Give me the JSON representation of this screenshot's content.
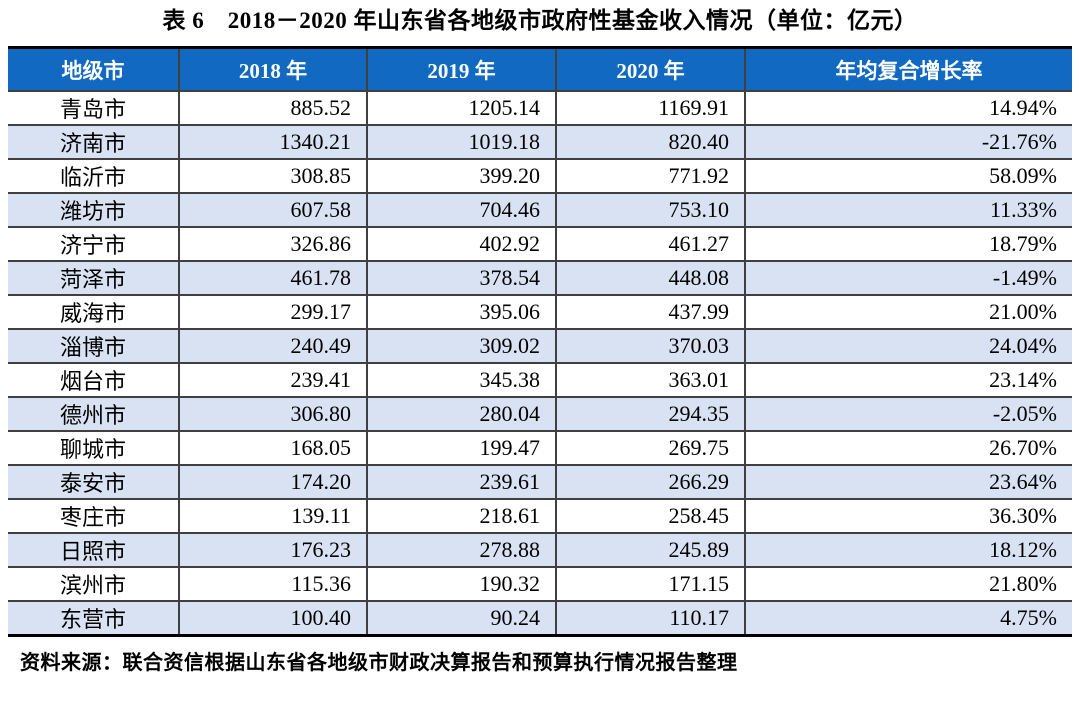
{
  "title": "表 6　2018－2020 年山东省各地级市政府性基金收入情况（单位：亿元）",
  "table": {
    "columns": [
      "地级市",
      "2018 年",
      "2019 年",
      "2020 年",
      "年均复合增长率"
    ],
    "rows": [
      [
        "青岛市",
        "885.52",
        "1205.14",
        "1169.91",
        "14.94%"
      ],
      [
        "济南市",
        "1340.21",
        "1019.18",
        "820.40",
        "-21.76%"
      ],
      [
        "临沂市",
        "308.85",
        "399.20",
        "771.92",
        "58.09%"
      ],
      [
        "潍坊市",
        "607.58",
        "704.46",
        "753.10",
        "11.33%"
      ],
      [
        "济宁市",
        "326.86",
        "402.92",
        "461.27",
        "18.79%"
      ],
      [
        "菏泽市",
        "461.78",
        "378.54",
        "448.08",
        "-1.49%"
      ],
      [
        "威海市",
        "299.17",
        "395.06",
        "437.99",
        "21.00%"
      ],
      [
        "淄博市",
        "240.49",
        "309.02",
        "370.03",
        "24.04%"
      ],
      [
        "烟台市",
        "239.41",
        "345.38",
        "363.01",
        "23.14%"
      ],
      [
        "德州市",
        "306.80",
        "280.04",
        "294.35",
        "-2.05%"
      ],
      [
        "聊城市",
        "168.05",
        "199.47",
        "269.75",
        "26.70%"
      ],
      [
        "泰安市",
        "174.20",
        "239.61",
        "266.29",
        "23.64%"
      ],
      [
        "枣庄市",
        "139.11",
        "218.61",
        "258.45",
        "36.30%"
      ],
      [
        "日照市",
        "176.23",
        "278.88",
        "245.89",
        "18.12%"
      ],
      [
        "滨州市",
        "115.36",
        "190.32",
        "171.15",
        "21.80%"
      ],
      [
        "东营市",
        "100.40",
        "90.24",
        "110.17",
        "4.75%"
      ]
    ]
  },
  "source_note": "资料来源：联合资信根据山东省各地级市财政决算报告和预算执行情况报告整理",
  "colors": {
    "header_bg": "#1169C2",
    "header_text": "#FFFFFF",
    "row_stripe": "#D9E2F3",
    "grid_line": "#404040",
    "frame_line": "#000000"
  }
}
